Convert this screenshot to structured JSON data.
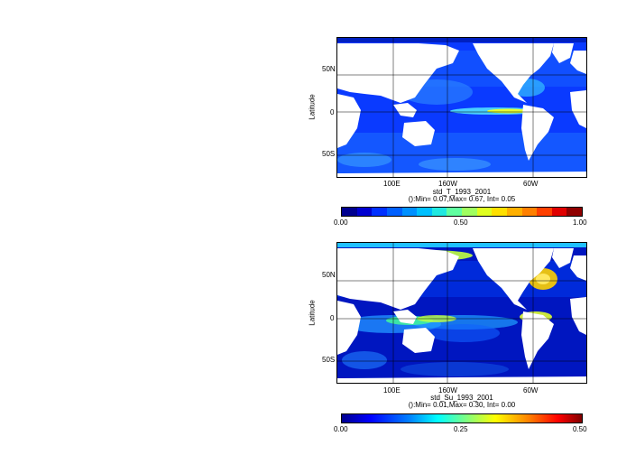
{
  "map1": {
    "ylabel": "Latitude",
    "lat_ticks": [
      "50N",
      "0",
      "50S"
    ],
    "lon_ticks": [
      "100E",
      "160W",
      "60W"
    ],
    "title": "std_T_1993_2001",
    "stats": "():Min= 0.07,Max= 0.67, Int= 0.05",
    "colorbar": {
      "labels": [
        "0.00",
        "0.50",
        "1.00"
      ],
      "colors": [
        "#00008f",
        "#0000d0",
        "#0030ff",
        "#0060ff",
        "#0090ff",
        "#00c0ff",
        "#20e8e0",
        "#60ffa0",
        "#a0ff60",
        "#e0ff20",
        "#ffe000",
        "#ffb000",
        "#ff8000",
        "#ff4000",
        "#e00000",
        "#900000"
      ]
    }
  },
  "map2": {
    "ylabel": "Latitude",
    "lat_ticks": [
      "50N",
      "0",
      "50S"
    ],
    "lon_ticks": [
      "100E",
      "160W",
      "60W"
    ],
    "title": "std_Su_1993_2001",
    "stats": "():Min= 0.01,Max= 0.30, Int= 0.00",
    "colorbar": {
      "labels": [
        "0.00",
        "0.25",
        "0.50"
      ]
    }
  }
}
